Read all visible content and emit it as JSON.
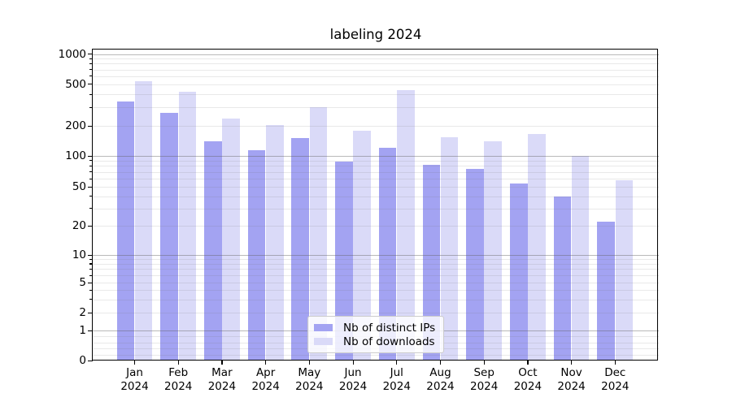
{
  "chart_data": {
    "type": "bar",
    "title": "labeling 2024",
    "categories": [
      "Jan 2024",
      "Feb 2024",
      "Mar 2024",
      "Apr 2024",
      "May 2024",
      "Jun 2024",
      "Jul 2024",
      "Aug 2024",
      "Sep 2024",
      "Oct 2024",
      "Nov 2024",
      "Dec 2024"
    ],
    "series": [
      {
        "name": "Nb of distinct IPs",
        "color": "#a3a3f2",
        "values": [
          340,
          265,
          140,
          115,
          150,
          88,
          120,
          82,
          75,
          54,
          40,
          22
        ]
      },
      {
        "name": "Nb of downloads",
        "color": "#dadaf8",
        "values": [
          530,
          420,
          235,
          205,
          300,
          180,
          440,
          155,
          140,
          165,
          100,
          58
        ]
      }
    ],
    "yscale": "symlog",
    "ylim": [
      0,
      1000
    ],
    "y_ticks": [
      0,
      1,
      2,
      5,
      10,
      20,
      50,
      100,
      200,
      500,
      1000
    ],
    "grid": "horizontal major and minor gridlines, drawn above bars",
    "legend_position": "inside axes, lower center"
  }
}
